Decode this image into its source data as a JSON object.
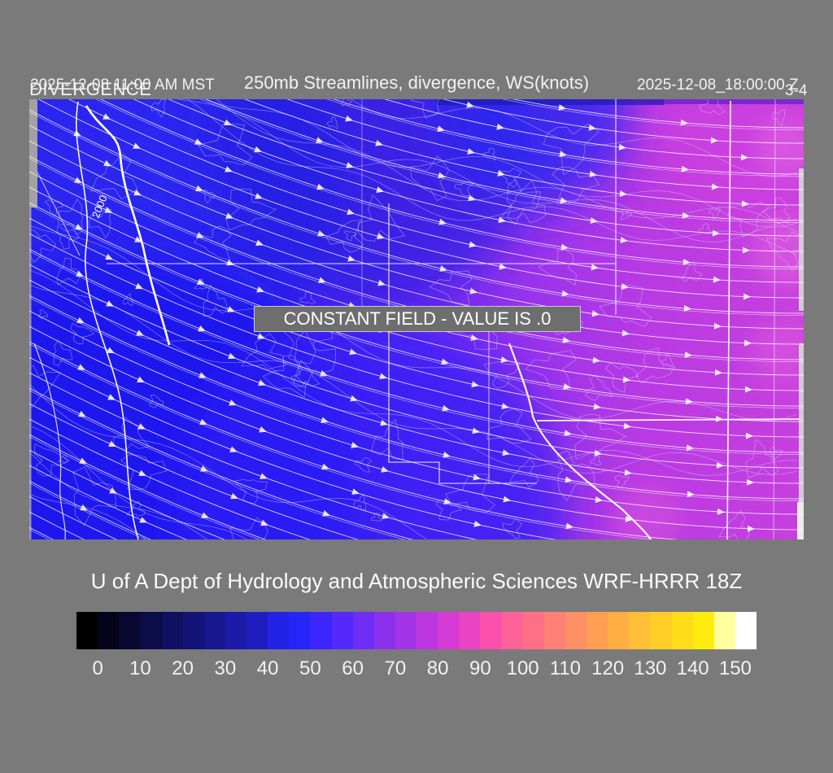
{
  "header": {
    "left_datetime": "2025-12-08 11:00 AM MST",
    "field_label": "DIVERGENCE",
    "title": "250mb Streamlines, divergence, WS(knots)",
    "right_datetime": "2025-12-08_18:00:00 Z",
    "frame_label": "3-4"
  },
  "map": {
    "constant_field_notice": "CONSTANT FIELD - VALUE IS .0",
    "contour_label": "2000"
  },
  "footer": {
    "caption": "U of A Dept of Hydrology and Atmospheric Sciences WRF-HRRR 18Z"
  },
  "colorbar": {
    "unit": "knots",
    "tick_labels": [
      "0",
      "10",
      "20",
      "30",
      "40",
      "50",
      "60",
      "70",
      "80",
      "90",
      "100",
      "110",
      "120",
      "130",
      "140",
      "150"
    ],
    "cell_colors": [
      "#000000",
      "#040418",
      "#080830",
      "#0c0c48",
      "#101060",
      "#141478",
      "#181890",
      "#1b1ba8",
      "#1e1ec0",
      "#2323e8",
      "#2525fa",
      "#3b26ff",
      "#5529fb",
      "#702df5",
      "#8b31ee",
      "#a434e7",
      "#bd37e0",
      "#d53bd5",
      "#ea43c3",
      "#fb51ad",
      "#ff6199",
      "#ff7087",
      "#ff8075",
      "#ff8f64",
      "#ff9f53",
      "#ffae43",
      "#ffbe35",
      "#ffcd27",
      "#ffdc1a",
      "#ffeb0e",
      "#ffff9e",
      "#ffffff"
    ]
  },
  "field_colors": {
    "base_left_blue": "#2e24ec",
    "center_purple": "#7c2ef0",
    "right_magenta": "#c43ddf",
    "pink_spot": "#e060e0",
    "deep_blue": "#1c18ee"
  }
}
